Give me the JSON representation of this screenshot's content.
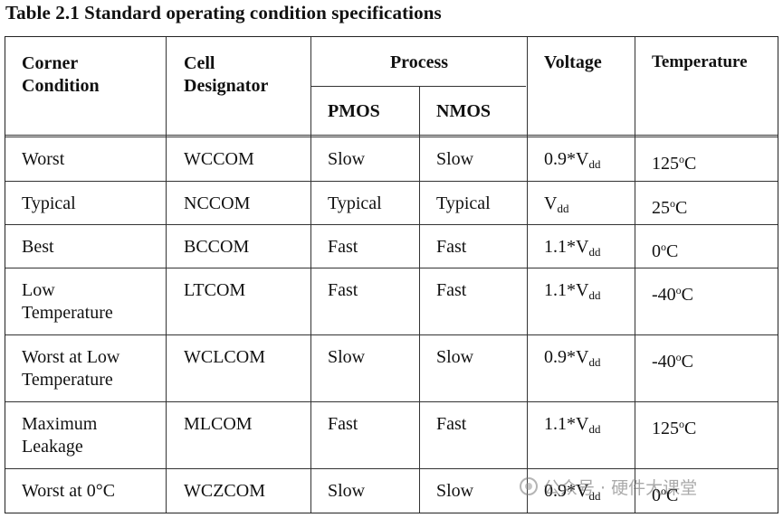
{
  "caption": "Table 2.1 Standard operating condition specifications",
  "headers": {
    "corner": [
      "Corner",
      "Condition"
    ],
    "cell": [
      "Cell",
      "Designator"
    ],
    "process": "Process",
    "pmos": "PMOS",
    "nmos": "NMOS",
    "voltage": "Voltage",
    "temperature": "Temperature"
  },
  "rows": [
    {
      "corner": [
        "Worst"
      ],
      "cell": "WCCOM",
      "pmos": "Slow",
      "nmos": "Slow",
      "voltage": {
        "coef": "0.9*V",
        "sub": "dd"
      },
      "temperature": {
        "value": "125",
        "unit": "C"
      }
    },
    {
      "corner": [
        "Typical"
      ],
      "cell": "NCCOM",
      "pmos": "Typical",
      "nmos": "Typical",
      "voltage": {
        "coef": "V",
        "sub": "dd"
      },
      "temperature": {
        "value": "25",
        "unit": "C"
      }
    },
    {
      "corner": [
        "Best"
      ],
      "cell": "BCCOM",
      "pmos": "Fast",
      "nmos": "Fast",
      "voltage": {
        "coef": "1.1*V",
        "sub": "dd"
      },
      "temperature": {
        "value": "0",
        "unit": "C"
      }
    },
    {
      "corner": [
        "Low",
        "Temperature"
      ],
      "cell": "LTCOM",
      "pmos": "Fast",
      "nmos": "Fast",
      "voltage": {
        "coef": "1.1*V",
        "sub": "dd"
      },
      "temperature": {
        "value": "-40",
        "unit": "C"
      }
    },
    {
      "corner": [
        "Worst at Low",
        "Temperature"
      ],
      "cell": "WCLCOM",
      "pmos": "Slow",
      "nmos": "Slow",
      "voltage": {
        "coef": "0.9*V",
        "sub": "dd"
      },
      "temperature": {
        "value": "-40",
        "unit": "C"
      }
    },
    {
      "corner": [
        "Maximum",
        "Leakage"
      ],
      "cell": "MLCOM",
      "pmos": "Fast",
      "nmos": "Fast",
      "voltage": {
        "coef": "1.1*V",
        "sub": "dd"
      },
      "temperature": {
        "value": "125",
        "unit": "C"
      }
    },
    {
      "corner": [
        "Worst at 0°C"
      ],
      "cell": "WCZCOM",
      "pmos": "Slow",
      "nmos": "Slow",
      "voltage": {
        "coef": "0.9*V",
        "sub": "dd"
      },
      "temperature": {
        "value": "0",
        "unit": "C"
      }
    }
  ],
  "watermark": {
    "text": "公众号 · 硬件大课堂",
    "icon": "wechat-official-account-icon"
  }
}
